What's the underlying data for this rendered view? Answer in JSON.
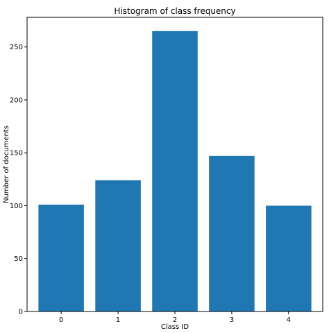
{
  "chart_data": {
    "type": "bar",
    "title": "Histogram of class frequency",
    "xlabel": "Class ID",
    "ylabel": "Number of documents",
    "categories": [
      "0",
      "1",
      "2",
      "3",
      "4"
    ],
    "values": [
      101,
      124,
      265,
      147,
      100
    ],
    "ylim": [
      0,
      278
    ],
    "yticks": [
      0,
      50,
      100,
      150,
      200,
      250
    ],
    "grid": false,
    "bar_color": "#1f77b4"
  }
}
